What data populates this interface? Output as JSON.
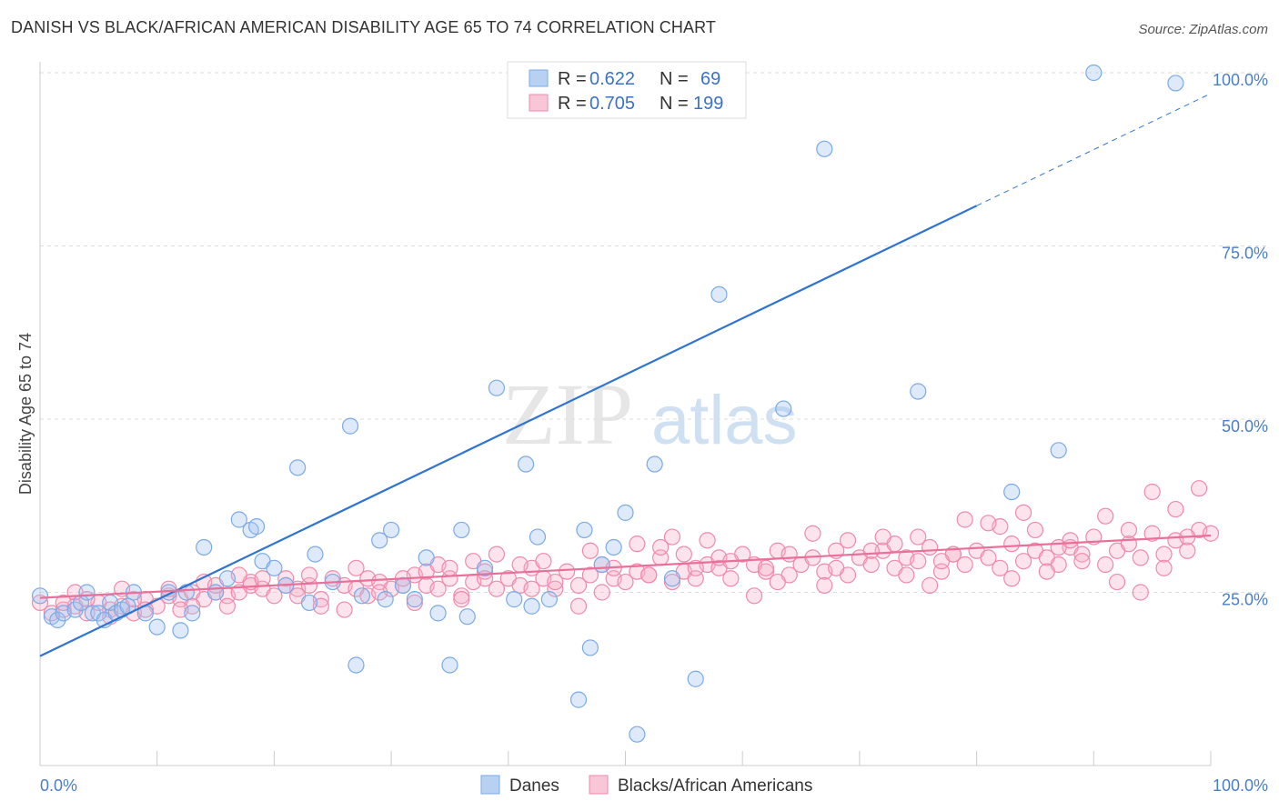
{
  "title": "DANISH VS BLACK/AFRICAN AMERICAN DISABILITY AGE 65 TO 74 CORRELATION CHART",
  "source": "Source: ZipAtlas.com",
  "watermark": {
    "zip": "ZIP",
    "atlas": "atlas"
  },
  "colors": {
    "danes": "#7aaae8",
    "danes_fill": "rgba(160,195,240,0.35)",
    "danes_line": "#2f74d0",
    "blacks": "#f08aaa",
    "blacks_fill": "rgba(245,175,200,0.35)",
    "blacks_line": "#e8709a",
    "tick": "#4a7ec9"
  },
  "legend": {
    "r_label": "R =",
    "n_label": "N =",
    "danes": {
      "r": "0.622",
      "n": "69"
    },
    "blacks": {
      "r": "0.705",
      "n": "199"
    }
  },
  "bottom_legend": {
    "danes": "Danes",
    "blacks": "Blacks/African Americans"
  },
  "chart_data": {
    "type": "scatter",
    "title": "DANISH VS BLACK/AFRICAN AMERICAN DISABILITY AGE 65 TO 74 CORRELATION CHART",
    "ylabel": "Disability Age 65 to 74",
    "xlabel": "",
    "xlim": [
      0,
      100
    ],
    "ylim": [
      0,
      100
    ],
    "x_tick_labels": [
      "0.0%",
      "100.0%"
    ],
    "y_tick_labels": [
      "25.0%",
      "50.0%",
      "75.0%",
      "100.0%"
    ],
    "y_ticks": [
      25,
      50,
      75,
      100
    ],
    "grid": true,
    "legend_position": "top-center",
    "series": [
      {
        "name": "Danes",
        "trend": {
          "x0": 0,
          "y0": 15.8,
          "x1": 80,
          "y1": 80.8,
          "dashed_to": [
            100,
            97.0
          ]
        },
        "points": [
          [
            0,
            24.5
          ],
          [
            1,
            21.5
          ],
          [
            1.5,
            21
          ],
          [
            2,
            22
          ],
          [
            3,
            22.5
          ],
          [
            3.5,
            23.5
          ],
          [
            4,
            25
          ],
          [
            4.5,
            22
          ],
          [
            5,
            22
          ],
          [
            5.5,
            21
          ],
          [
            6,
            23.5
          ],
          [
            6.5,
            22
          ],
          [
            7,
            22.5
          ],
          [
            7.5,
            23
          ],
          [
            8,
            25
          ],
          [
            9,
            22
          ],
          [
            10,
            20
          ],
          [
            11,
            25
          ],
          [
            12,
            19.5
          ],
          [
            12.5,
            25
          ],
          [
            13,
            22
          ],
          [
            14,
            31.5
          ],
          [
            15,
            25
          ],
          [
            16,
            27
          ],
          [
            17,
            35.5
          ],
          [
            18,
            34
          ],
          [
            18.5,
            34.5
          ],
          [
            19,
            29.5
          ],
          [
            20,
            28.5
          ],
          [
            21,
            26
          ],
          [
            22,
            43
          ],
          [
            23,
            23.5
          ],
          [
            23.5,
            30.5
          ],
          [
            25,
            26.5
          ],
          [
            26.5,
            49
          ],
          [
            27,
            14.5
          ],
          [
            27.5,
            24.5
          ],
          [
            29,
            32.5
          ],
          [
            29.5,
            24
          ],
          [
            30,
            34
          ],
          [
            31,
            26
          ],
          [
            32,
            24
          ],
          [
            33,
            30
          ],
          [
            34,
            22
          ],
          [
            35,
            14.5
          ],
          [
            36,
            34
          ],
          [
            36.5,
            21.5
          ],
          [
            38,
            28.5
          ],
          [
            39,
            54.5
          ],
          [
            40.5,
            24
          ],
          [
            41.5,
            43.5
          ],
          [
            42,
            23
          ],
          [
            42.5,
            33
          ],
          [
            43.5,
            24
          ],
          [
            46,
            9.5
          ],
          [
            46.5,
            34
          ],
          [
            47,
            17
          ],
          [
            48,
            29
          ],
          [
            49,
            31.5
          ],
          [
            50,
            36.5
          ],
          [
            51,
            4.5
          ],
          [
            52.5,
            43.5
          ],
          [
            54,
            27
          ],
          [
            56,
            12.5
          ],
          [
            58,
            68
          ],
          [
            63.5,
            51.5
          ],
          [
            67,
            89
          ],
          [
            75,
            54
          ],
          [
            83,
            39.5
          ],
          [
            87,
            45.5
          ],
          [
            90,
            100
          ],
          [
            97,
            98.5
          ]
        ]
      },
      {
        "name": "Blacks/African Americans",
        "trend": {
          "x0": 0,
          "y0": 24.2,
          "x1": 100,
          "y1": 33.2
        },
        "points": [
          [
            0,
            23.5
          ],
          [
            1,
            22
          ],
          [
            2,
            22.5
          ],
          [
            3,
            23
          ],
          [
            4,
            22
          ],
          [
            5,
            23.5
          ],
          [
            6,
            22.5
          ],
          [
            7,
            23
          ],
          [
            8,
            22
          ],
          [
            9,
            24
          ],
          [
            10,
            23
          ],
          [
            11,
            24.5
          ],
          [
            12,
            24
          ],
          [
            13,
            25
          ],
          [
            14,
            24
          ],
          [
            15,
            25
          ],
          [
            16,
            24.5
          ],
          [
            17,
            25
          ],
          [
            18,
            26
          ],
          [
            19,
            25.5
          ],
          [
            20,
            24.5
          ],
          [
            21,
            27
          ],
          [
            22,
            25.5
          ],
          [
            23,
            26
          ],
          [
            24,
            24
          ],
          [
            25,
            27
          ],
          [
            26,
            26
          ],
          [
            27,
            25.5
          ],
          [
            28,
            27
          ],
          [
            29,
            26.5
          ],
          [
            30,
            25.5
          ],
          [
            31,
            26
          ],
          [
            32,
            27.5
          ],
          [
            33,
            26
          ],
          [
            34,
            25.5
          ],
          [
            35,
            27
          ],
          [
            36,
            24.5
          ],
          [
            37,
            26.5
          ],
          [
            38,
            28
          ],
          [
            39,
            25.5
          ],
          [
            40,
            27
          ],
          [
            41,
            26
          ],
          [
            42,
            28.5
          ],
          [
            43,
            27
          ],
          [
            44,
            25.5
          ],
          [
            45,
            28
          ],
          [
            46,
            26
          ],
          [
            47,
            27.5
          ],
          [
            48,
            29
          ],
          [
            49,
            27
          ],
          [
            50,
            26.5
          ],
          [
            51,
            28
          ],
          [
            52,
            27.5
          ],
          [
            53,
            30
          ],
          [
            54,
            26.5
          ],
          [
            55,
            28
          ],
          [
            56,
            27
          ],
          [
            57,
            29
          ],
          [
            58,
            28.5
          ],
          [
            59,
            27
          ],
          [
            60,
            30.5
          ],
          [
            61,
            29
          ],
          [
            62,
            28
          ],
          [
            63,
            31
          ],
          [
            64,
            27.5
          ],
          [
            65,
            29
          ],
          [
            66,
            30
          ],
          [
            67,
            28
          ],
          [
            68,
            31
          ],
          [
            69,
            27.5
          ],
          [
            70,
            30
          ],
          [
            71,
            29
          ],
          [
            72,
            31
          ],
          [
            73,
            28.5
          ],
          [
            74,
            30
          ],
          [
            75,
            29.5
          ],
          [
            76,
            31.5
          ],
          [
            77,
            28
          ],
          [
            78,
            30.5
          ],
          [
            79,
            29
          ],
          [
            80,
            31
          ],
          [
            81,
            30
          ],
          [
            82,
            28.5
          ],
          [
            83,
            32
          ],
          [
            84,
            29.5
          ],
          [
            85,
            31
          ],
          [
            86,
            30
          ],
          [
            87,
            29
          ],
          [
            88,
            31.5
          ],
          [
            89,
            30.5
          ],
          [
            90,
            33
          ],
          [
            91,
            29
          ],
          [
            92,
            31
          ],
          [
            93,
            32
          ],
          [
            94,
            30
          ],
          [
            95,
            33.5
          ],
          [
            96,
            30.5
          ],
          [
            97,
            32.5
          ],
          [
            98,
            31
          ],
          [
            99,
            34
          ],
          [
            100,
            33.5
          ],
          [
            3,
            25
          ],
          [
            8,
            24
          ],
          [
            13,
            23
          ],
          [
            18,
            26.5
          ],
          [
            23,
            27.5
          ],
          [
            28,
            24.5
          ],
          [
            33,
            28
          ],
          [
            38,
            27
          ],
          [
            43,
            29.5
          ],
          [
            48,
            25
          ],
          [
            53,
            31.5
          ],
          [
            58,
            30
          ],
          [
            63,
            26.5
          ],
          [
            68,
            28.5
          ],
          [
            73,
            32
          ],
          [
            78,
            30.5
          ],
          [
            83,
            27
          ],
          [
            88,
            32.5
          ],
          [
            93,
            34
          ],
          [
            98,
            33
          ],
          [
            2,
            23.5
          ],
          [
            7,
            25.5
          ],
          [
            12,
            22.5
          ],
          [
            17,
            27.5
          ],
          [
            22,
            24.5
          ],
          [
            27,
            28.5
          ],
          [
            32,
            23.5
          ],
          [
            37,
            29.5
          ],
          [
            42,
            25.5
          ],
          [
            47,
            31
          ],
          [
            52,
            27.5
          ],
          [
            57,
            32.5
          ],
          [
            62,
            28.5
          ],
          [
            67,
            26
          ],
          [
            72,
            33
          ],
          [
            77,
            29.5
          ],
          [
            82,
            34.5
          ],
          [
            87,
            31.5
          ],
          [
            92,
            26.5
          ],
          [
            97,
            37
          ],
          [
            6,
            21.5
          ],
          [
            11,
            25.5
          ],
          [
            16,
            23
          ],
          [
            21,
            26
          ],
          [
            26,
            22.5
          ],
          [
            31,
            27
          ],
          [
            36,
            24
          ],
          [
            41,
            29
          ],
          [
            46,
            23
          ],
          [
            51,
            32
          ],
          [
            56,
            28.5
          ],
          [
            61,
            24.5
          ],
          [
            66,
            33.5
          ],
          [
            71,
            31
          ],
          [
            76,
            26
          ],
          [
            81,
            35
          ],
          [
            86,
            28
          ],
          [
            91,
            36
          ],
          [
            96,
            28.5
          ],
          [
            99,
            40
          ],
          [
            4,
            24
          ],
          [
            14,
            26.5
          ],
          [
            24,
            23
          ],
          [
            34,
            29
          ],
          [
            44,
            26.5
          ],
          [
            54,
            33
          ],
          [
            64,
            30.5
          ],
          [
            74,
            27.5
          ],
          [
            84,
            36.5
          ],
          [
            94,
            25
          ],
          [
            9,
            22.5
          ],
          [
            19,
            27
          ],
          [
            29,
            25
          ],
          [
            39,
            30.5
          ],
          [
            49,
            28.5
          ],
          [
            59,
            29.5
          ],
          [
            69,
            32.5
          ],
          [
            79,
            35.5
          ],
          [
            89,
            29.5
          ],
          [
            95,
            39.5
          ],
          [
            15,
            26
          ],
          [
            35,
            28.5
          ],
          [
            55,
            30.5
          ],
          [
            75,
            33
          ],
          [
            85,
            34
          ]
        ]
      }
    ]
  }
}
